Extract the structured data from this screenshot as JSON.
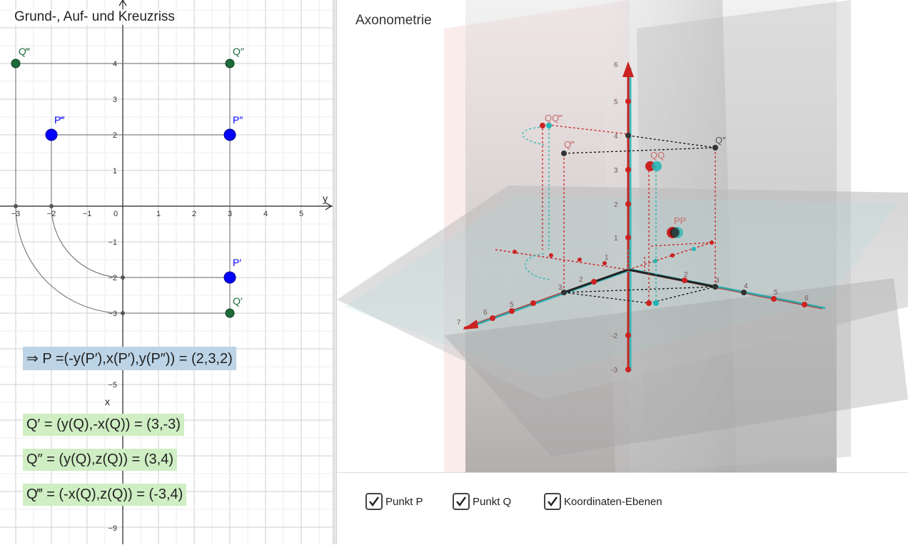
{
  "left_panel": {
    "title": "Grund-, Auf- und Kreuzriss",
    "axis_labels": {
      "x": "x",
      "y": "y"
    },
    "x_ticks": [
      "−3",
      "−2",
      "−1",
      "0",
      "1",
      "2",
      "3",
      "4",
      "5"
    ],
    "y_ticks": [
      "4",
      "3",
      "2",
      "1",
      "−1",
      "−2",
      "−3",
      "−5",
      "−9"
    ],
    "points": {
      "q3": "Q‴",
      "q2": "Q″",
      "p3": "P‴",
      "p2": "P″",
      "p1": "P′",
      "q1": "Q′"
    },
    "formulas": {
      "p": "⇒ P =(-y(P′),x(P′),y(P″)) = (2,3,2)",
      "q1": "Q′ = (y(Q),-x(Q)) = (3,-3)",
      "q2": "Q″ = (y(Q),z(Q)) = (3,4)",
      "q3": "Q‴ = (-x(Q),z(Q)) = (-3,4)"
    },
    "colors": {
      "blue": "#0000ff",
      "green": "#1e6b3a",
      "grid": "#d9d9d9",
      "axis": "#222222"
    }
  },
  "right_panel": {
    "title": "Axonometrie",
    "labels": {
      "q2": "Q″",
      "q3": "QQ‴",
      "q3b": "Q‴",
      "q": "QQ",
      "p": "PP"
    },
    "z_ticks": [
      "6",
      "5",
      "4",
      "3",
      "2",
      "1",
      "-2",
      "-3"
    ],
    "y_ticks": [
      "2",
      "3",
      "4",
      "5",
      "6"
    ],
    "x_ticks": [
      "7",
      "6",
      "5",
      "3",
      "2",
      "1"
    ],
    "colors": {
      "red": "#cc2222",
      "cyan": "#22b5b5",
      "plane": "#c8c8c8"
    }
  },
  "checkboxes": [
    {
      "label": "Punkt P",
      "checked": true
    },
    {
      "label": "Punkt Q",
      "checked": true
    },
    {
      "label": "Koordinaten-Ebenen",
      "checked": true
    }
  ]
}
